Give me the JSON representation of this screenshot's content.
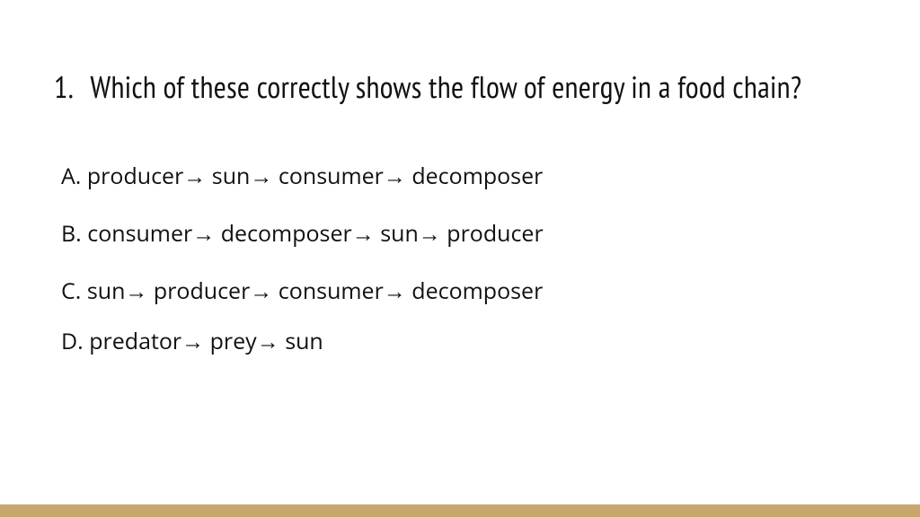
{
  "question": {
    "number": "1.",
    "text": "Which of these correctly shows the flow of energy in a food chain?"
  },
  "options": [
    {
      "label": "A.",
      "text": "producer→ sun→ consumer→ decomposer"
    },
    {
      "label": "B.",
      "text": "consumer→ decomposer→ sun→ producer"
    },
    {
      "label": "C.",
      "text": "sun→ producer→ consumer→ decomposer"
    },
    {
      "label": "D.",
      "text": "predator→ prey→ sun"
    }
  ],
  "style": {
    "accent_bar_color": "#c9a66b",
    "background_color": "#ffffff",
    "text_color": "#111111",
    "question_fontsize": 34,
    "option_fontsize": 25
  }
}
